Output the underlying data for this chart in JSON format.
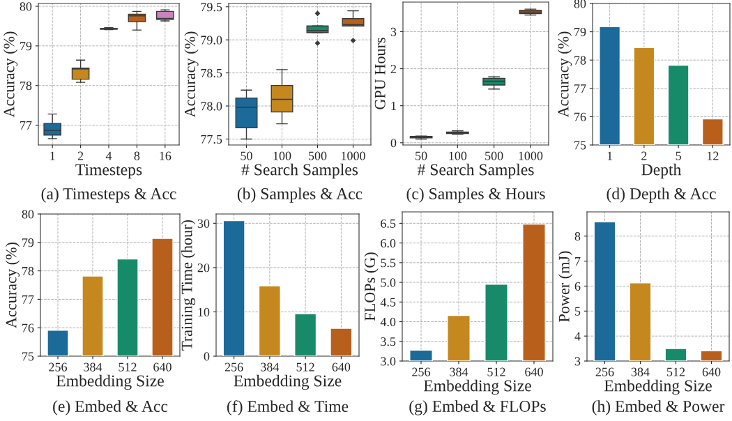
{
  "chart_data": [
    {
      "type": "box",
      "categories": [
        "1",
        "2",
        "4",
        "8",
        "16"
      ],
      "xlabel": "Timesteps",
      "ylabel": "Accuracy (%)",
      "ylim": [
        76.5,
        80.07
      ],
      "yticks": [
        77,
        78,
        79,
        80
      ],
      "grid": true,
      "colors": [
        "#1b6a9a",
        "#c4881f",
        "#2f4f4f",
        "#b95f1c",
        "#c983bd"
      ],
      "boxes": [
        {
          "low": 76.66,
          "q1": 76.75,
          "median": 76.87,
          "q3": 77.04,
          "high": 77.28
        },
        {
          "low": 78.08,
          "q1": 78.16,
          "median": 78.42,
          "q3": 78.44,
          "high": 78.64
        },
        {
          "low": 79.41,
          "q1": 79.42,
          "median": 79.43,
          "q3": 79.44,
          "high": 79.46
        },
        {
          "low": 79.4,
          "q1": 79.61,
          "median": 79.76,
          "q3": 79.8,
          "high": 79.87
        },
        {
          "low": 79.63,
          "q1": 79.67,
          "median": 79.69,
          "q3": 79.87,
          "high": 79.91
        }
      ],
      "annotations": [
        "(a) Timesteps & Acc"
      ]
    },
    {
      "type": "box",
      "categories": [
        "50",
        "100",
        "500",
        "1000"
      ],
      "xlabel": "# Search Samples",
      "ylabel": "Accuracy (%)",
      "ylim": [
        77.41,
        79.55
      ],
      "yticks": [
        77.5,
        {
          "value": 78,
          "label": "78.0"
        },
        78.5,
        {
          "value": 79,
          "label": "79.0"
        },
        79.5
      ],
      "grid": true,
      "colors": [
        "#1b6a9a",
        "#c4881f",
        "#178b69",
        "#b95f1c"
      ],
      "boxes": [
        {
          "low": 77.5,
          "q1": 77.67,
          "median": 77.98,
          "q3": 78.12,
          "high": 78.24
        },
        {
          "low": 77.73,
          "q1": 77.91,
          "median": 78.1,
          "q3": 78.31,
          "high": 78.55
        },
        {
          "low": 79.11,
          "q1": 79.11,
          "median": 79.14,
          "q3": 79.21,
          "high": 79.21,
          "outliers": [
            79.4,
            78.95
          ]
        },
        {
          "low": 79.21,
          "q1": 79.21,
          "median": 79.23,
          "q3": 79.32,
          "high": 79.44,
          "outliers": [
            78.99
          ]
        }
      ],
      "annotations": [
        "(b) Samples & Acc"
      ]
    },
    {
      "type": "box",
      "categories": [
        "50",
        "100",
        "500",
        "1000"
      ],
      "xlabel": "# Search Samples",
      "ylabel": "GPU Hours",
      "ylim": [
        -0.06,
        3.8
      ],
      "yticks": [
        0,
        1,
        2,
        3
      ],
      "grid": true,
      "colors": [
        "#2f4f4f",
        "#2f4f4f",
        "#178b69",
        "#b95f1c"
      ],
      "boxes": [
        {
          "low": 0.1,
          "q1": 0.13,
          "median": 0.15,
          "q3": 0.17,
          "high": 0.18
        },
        {
          "low": 0.23,
          "q1": 0.25,
          "median": 0.27,
          "q3": 0.29,
          "high": 0.32
        },
        {
          "low": 1.45,
          "q1": 1.56,
          "median": 1.66,
          "q3": 1.74,
          "high": 1.78
        },
        {
          "low": 3.45,
          "q1": 3.49,
          "median": 3.53,
          "q3": 3.58,
          "high": 3.61
        }
      ],
      "annotations": [
        "(c) Samples & Hours"
      ]
    },
    {
      "type": "bar",
      "categories": [
        "1",
        "2",
        "5",
        "12"
      ],
      "xlabel": "Depth",
      "ylabel": "Accuracy (%)",
      "ylim": [
        75,
        80
      ],
      "yticks": [
        75,
        76,
        77,
        78,
        79,
        80
      ],
      "grid": true,
      "colors": [
        "#1b6a9a",
        "#c4881f",
        "#178b69",
        "#b95f1c"
      ],
      "values": [
        79.18,
        78.44,
        77.82,
        75.92
      ],
      "annotations": [
        "(d) Depth & Acc"
      ]
    },
    {
      "type": "bar",
      "categories": [
        "256",
        "384",
        "512",
        "640"
      ],
      "xlabel": "Embedding Size",
      "ylabel": "Accuracy (%)",
      "ylim": [
        75,
        80
      ],
      "yticks": [
        75,
        76,
        77,
        78,
        79,
        80
      ],
      "grid": true,
      "colors": [
        "#1b6a9a",
        "#c4881f",
        "#178b69",
        "#b95f1c"
      ],
      "values": [
        75.91,
        77.82,
        78.42,
        79.14
      ],
      "annotations": [
        "(e) Embed & Acc"
      ]
    },
    {
      "type": "bar",
      "categories": [
        "256",
        "384",
        "512",
        "640"
      ],
      "xlabel": "Embedding Size",
      "ylabel": "Training Time (hour)",
      "ylim": [
        0,
        32.1
      ],
      "yticks": [
        0,
        10,
        20,
        30
      ],
      "grid": true,
      "colors": [
        "#1b6a9a",
        "#c4881f",
        "#178b69",
        "#b95f1c"
      ],
      "values": [
        30.6,
        15.9,
        9.6,
        6.3
      ],
      "annotations": [
        "(f) Embed & Time"
      ]
    },
    {
      "type": "bar",
      "categories": [
        "256",
        "384",
        "512",
        "640"
      ],
      "xlabel": "Embedding Size",
      "ylabel": "FLOPs (G)",
      "ylim": [
        3.0,
        6.79
      ],
      "yticks": [
        {
          "value": 3,
          "label": "3.0"
        },
        3.5,
        {
          "value": 4,
          "label": "4.0"
        },
        4.5,
        {
          "value": 5,
          "label": "5.0"
        },
        5.5,
        {
          "value": 6,
          "label": "6.0"
        },
        6.5
      ],
      "grid": true,
      "colors": [
        "#1b6a9a",
        "#c4881f",
        "#178b69",
        "#b95f1c"
      ],
      "values": [
        3.28,
        4.16,
        4.95,
        6.48
      ],
      "annotations": [
        "(g) Embed & FLOPs"
      ]
    },
    {
      "type": "bar",
      "categories": [
        "256",
        "384",
        "512",
        "640"
      ],
      "xlabel": "Embedding Size",
      "ylabel": "Power (mJ)",
      "ylim": [
        3,
        8.97
      ],
      "yticks": [
        3,
        4,
        5,
        6,
        7,
        8
      ],
      "grid": true,
      "colors": [
        "#1b6a9a",
        "#c4881f",
        "#178b69",
        "#b95f1c"
      ],
      "values": [
        8.57,
        6.13,
        3.5,
        3.41
      ],
      "annotations": [
        "(h) Embed & Power"
      ]
    }
  ]
}
